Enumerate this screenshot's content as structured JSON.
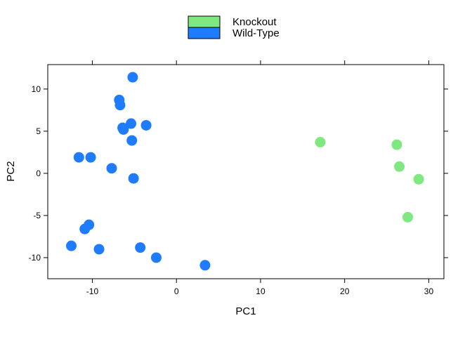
{
  "chart_data": {
    "type": "scatter",
    "title": "",
    "xlabel": "PC1",
    "ylabel": "PC2",
    "xlim": [
      -15.3,
      31.8
    ],
    "ylim": [
      -12.5,
      12.9
    ],
    "xticks": [
      -10,
      0,
      10,
      20,
      30
    ],
    "yticks": [
      -10,
      -5,
      0,
      5,
      10
    ],
    "grid": false,
    "legend_position": "top-center",
    "series": [
      {
        "name": "Knockout",
        "color": "#80e880",
        "points": [
          {
            "x": 17.1,
            "y": 3.7
          },
          {
            "x": 26.2,
            "y": 3.4
          },
          {
            "x": 26.5,
            "y": 0.8
          },
          {
            "x": 28.8,
            "y": -0.7
          },
          {
            "x": 27.5,
            "y": -5.2
          }
        ]
      },
      {
        "name": "Wild-Type",
        "color": "#1f7bff",
        "points": [
          {
            "x": -5.2,
            "y": 11.4
          },
          {
            "x": -6.8,
            "y": 8.7
          },
          {
            "x": -6.7,
            "y": 8.1
          },
          {
            "x": -5.4,
            "y": 5.9
          },
          {
            "x": -3.6,
            "y": 5.7
          },
          {
            "x": -6.4,
            "y": 5.4
          },
          {
            "x": -6.3,
            "y": 5.2
          },
          {
            "x": -5.3,
            "y": 3.9
          },
          {
            "x": -11.6,
            "y": 1.9
          },
          {
            "x": -10.2,
            "y": 1.9
          },
          {
            "x": -7.7,
            "y": 0.6
          },
          {
            "x": -5.1,
            "y": -0.6
          },
          {
            "x": -10.4,
            "y": -6.1
          },
          {
            "x": -10.9,
            "y": -6.6
          },
          {
            "x": -12.5,
            "y": -8.6
          },
          {
            "x": -9.2,
            "y": -9.0
          },
          {
            "x": -4.3,
            "y": -8.8
          },
          {
            "x": -2.4,
            "y": -10.0
          },
          {
            "x": 3.4,
            "y": -10.9
          }
        ]
      }
    ]
  }
}
